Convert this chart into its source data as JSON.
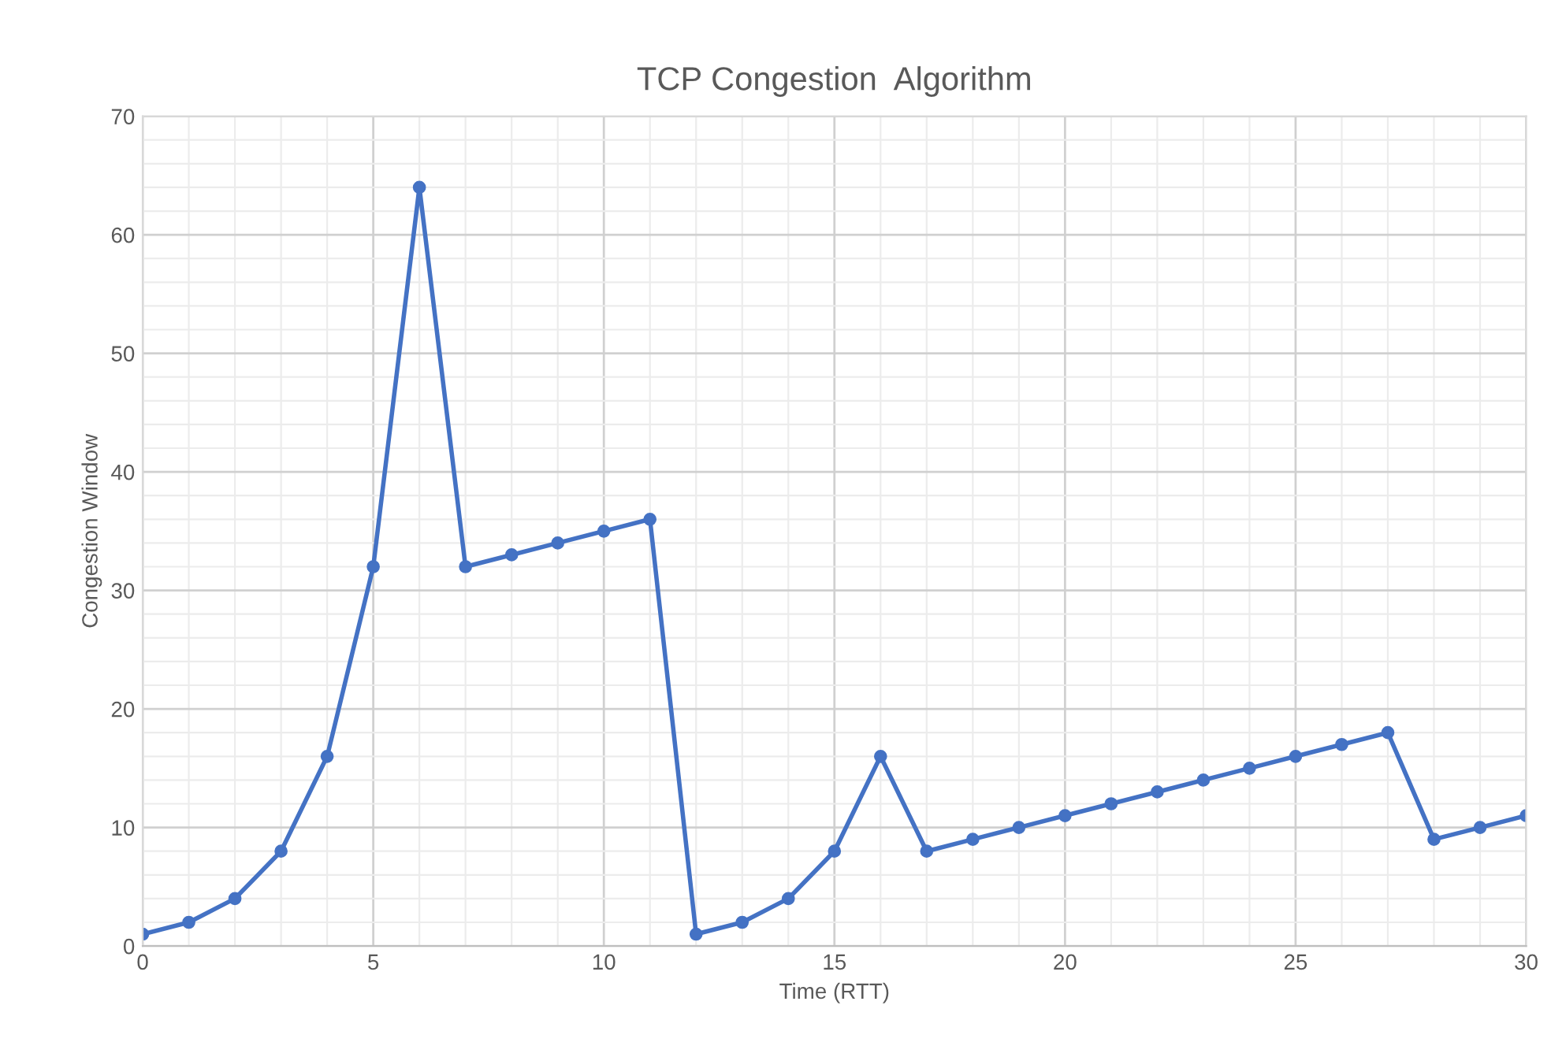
{
  "chart_data": {
    "type": "line",
    "title": "TCP Congestion  Algorithm",
    "xlabel": "Time (RTT)",
    "ylabel": "Congestion Window",
    "x": [
      0,
      1,
      2,
      3,
      4,
      5,
      6,
      7,
      8,
      9,
      10,
      11,
      12,
      13,
      14,
      15,
      16,
      17,
      18,
      19,
      20,
      21,
      22,
      23,
      24,
      25,
      26,
      27,
      28,
      29,
      30
    ],
    "series": [
      {
        "color": "#4472c4",
        "values": [
          1,
          2,
          4,
          8,
          16,
          32,
          64,
          32,
          33,
          34,
          35,
          36,
          1,
          2,
          4,
          8,
          16,
          8,
          9,
          10,
          11,
          12,
          13,
          14,
          15,
          16,
          17,
          18,
          9,
          10,
          11
        ]
      }
    ],
    "xlim": [
      0,
      30
    ],
    "xticks": [
      0,
      5,
      10,
      15,
      20,
      25,
      30
    ],
    "ylim": [
      0,
      70
    ],
    "yticks": [
      0,
      10,
      20,
      30,
      40,
      50,
      60,
      70
    ],
    "grid": true,
    "marker": "circle",
    "line_style": "solid"
  }
}
